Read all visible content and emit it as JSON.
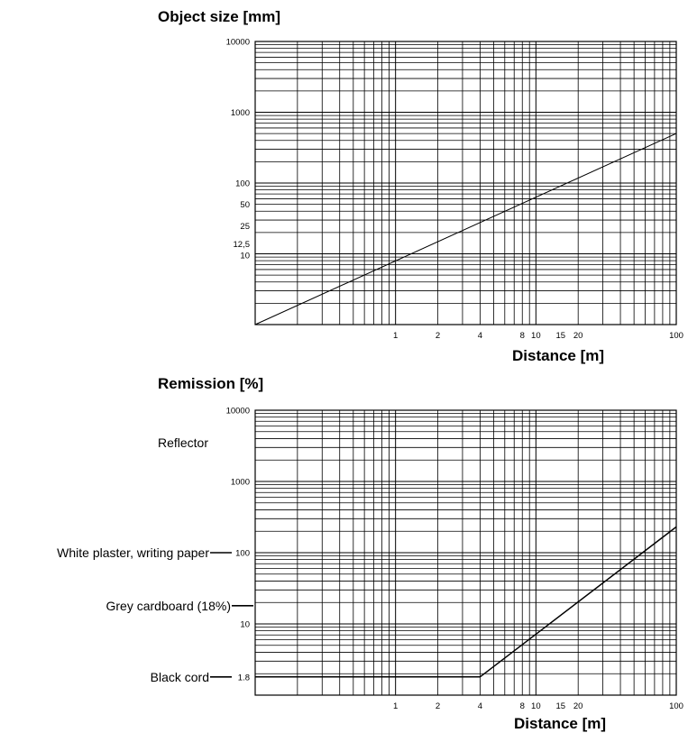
{
  "chart_data": [
    {
      "type": "line",
      "title": "Object size [mm]",
      "xlabel": "Distance [m]",
      "ylabel": "",
      "x_scale": "log",
      "y_scale": "log",
      "xlim": [
        0.1,
        100
      ],
      "ylim": [
        1,
        10000
      ],
      "grid": true,
      "x_ticks": [
        {
          "value": 1,
          "label": "1"
        },
        {
          "value": 2,
          "label": "2"
        },
        {
          "value": 4,
          "label": "4"
        },
        {
          "value": 8,
          "label": "8"
        },
        {
          "value": 10,
          "label": "10"
        },
        {
          "value": 15,
          "label": "15"
        },
        {
          "value": 20,
          "label": "20"
        },
        {
          "value": 100,
          "label": "100"
        }
      ],
      "y_ticks": [
        {
          "value": 10000,
          "label": "10000"
        },
        {
          "value": 1000,
          "label": "1000"
        },
        {
          "value": 100,
          "label": "100"
        },
        {
          "value": 50,
          "label": "50"
        },
        {
          "value": 25,
          "label": "25"
        },
        {
          "value": 12.5,
          "label": "12,5"
        },
        {
          "value": 10,
          "label": "10"
        }
      ],
      "series": [
        {
          "name": "",
          "x": [
            0.1,
            100
          ],
          "y": [
            1,
            500
          ]
        }
      ]
    },
    {
      "type": "line",
      "title": "Remission [%]",
      "xlabel": "Distance [m]",
      "ylabel": "",
      "x_scale": "log",
      "y_scale": "log",
      "xlim": [
        0.1,
        100
      ],
      "ylim": [
        1,
        10000
      ],
      "grid": true,
      "x_ticks": [
        {
          "value": 1,
          "label": "1"
        },
        {
          "value": 2,
          "label": "2"
        },
        {
          "value": 4,
          "label": "4"
        },
        {
          "value": 8,
          "label": "8"
        },
        {
          "value": 10,
          "label": "10"
        },
        {
          "value": 15,
          "label": "15"
        },
        {
          "value": 20,
          "label": "20"
        },
        {
          "value": 100,
          "label": "100"
        }
      ],
      "y_ticks": [
        {
          "value": 10000,
          "label": "10000"
        },
        {
          "value": 1000,
          "label": "1000"
        },
        {
          "value": 100,
          "label": "100"
        },
        {
          "value": 10,
          "label": "10"
        },
        {
          "value": 1.8,
          "label": "1.8"
        }
      ],
      "annotations": [
        {
          "text": "Reflector",
          "y": 3500,
          "leader": false
        },
        {
          "text": "White plaster, writing paper",
          "y": 100,
          "leader": true
        },
        {
          "text": "Grey cardboard (18%)",
          "y": 18,
          "leader": true
        },
        {
          "text": "Black cord",
          "y": 1.8,
          "leader": true
        }
      ],
      "series": [
        {
          "name": "",
          "x": [
            0.1,
            4,
            100
          ],
          "y": [
            1.8,
            1.8,
            230
          ]
        }
      ]
    }
  ]
}
